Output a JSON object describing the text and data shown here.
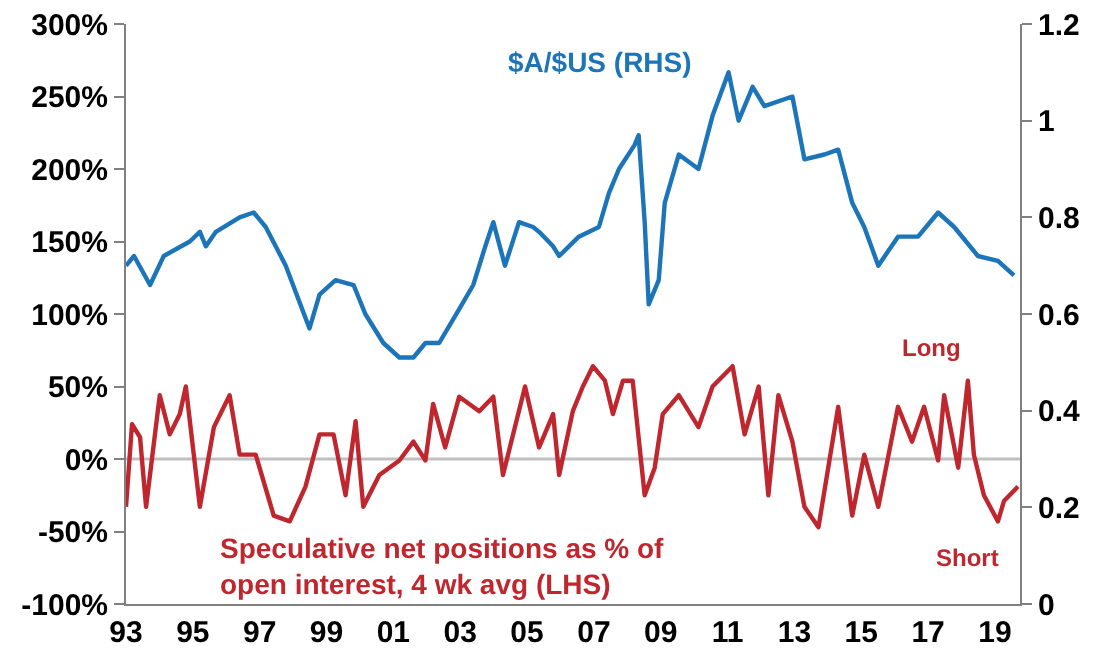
{
  "chart_data": {
    "type": "line",
    "xlim": [
      1993,
      2019.75
    ],
    "xticks": [
      {
        "value": 1993,
        "label": "93"
      },
      {
        "value": 1995,
        "label": "95"
      },
      {
        "value": 1997,
        "label": "97"
      },
      {
        "value": 1999,
        "label": "99"
      },
      {
        "value": 2001,
        "label": "01"
      },
      {
        "value": 2003,
        "label": "03"
      },
      {
        "value": 2005,
        "label": "05"
      },
      {
        "value": 2007,
        "label": "07"
      },
      {
        "value": 2009,
        "label": "09"
      },
      {
        "value": 2011,
        "label": "11"
      },
      {
        "value": 2013,
        "label": "13"
      },
      {
        "value": 2015,
        "label": "15"
      },
      {
        "value": 2017,
        "label": "17"
      },
      {
        "value": 2019,
        "label": "19"
      }
    ],
    "ylim": [
      -100,
      300
    ],
    "yticks": [
      {
        "value": -100,
        "label": "-100%"
      },
      {
        "value": -50,
        "label": "-50%"
      },
      {
        "value": 0,
        "label": "0%"
      },
      {
        "value": 50,
        "label": "50%"
      },
      {
        "value": 100,
        "label": "100%"
      },
      {
        "value": 150,
        "label": "150%"
      },
      {
        "value": 200,
        "label": "200%"
      },
      {
        "value": 250,
        "label": "250%"
      },
      {
        "value": 300,
        "label": "300%"
      }
    ],
    "y2lim": [
      0,
      1.2
    ],
    "y2ticks": [
      0,
      0.2,
      0.4,
      0.6,
      0.8,
      1,
      1.2
    ],
    "grid": false,
    "legend": false,
    "line_style": "solid",
    "marker": "none",
    "ref_lines": [
      {
        "axis": "y",
        "value": 0,
        "color": "#c0c0c0"
      }
    ],
    "annotations": [
      "Long",
      "Short"
    ],
    "series": [
      {
        "name": "$A/$US (RHS)",
        "color": "#1c75b9",
        "axis": "y2",
        "x": [
          1993.0,
          1993.24,
          1993.72,
          1994.13,
          1994.91,
          1995.21,
          1995.39,
          1995.69,
          1996.4,
          1996.82,
          1997.18,
          1997.78,
          1998.49,
          1998.79,
          1999.27,
          1999.81,
          2000.16,
          2000.7,
          2001.18,
          2001.6,
          2001.96,
          2002.37,
          2002.97,
          2003.39,
          2003.75,
          2003.99,
          2004.34,
          2004.76,
          2005.18,
          2005.36,
          2005.78,
          2005.96,
          2006.55,
          2007.15,
          2007.45,
          2007.75,
          2008.22,
          2008.34,
          2008.52,
          2008.64,
          2008.94,
          2009.12,
          2009.54,
          2010.13,
          2010.55,
          2011.03,
          2011.33,
          2011.75,
          2012.1,
          2012.94,
          2013.3,
          2013.9,
          2014.31,
          2014.73,
          2015.09,
          2015.51,
          2016.1,
          2016.7,
          2017.3,
          2017.78,
          2018.49,
          2019.09,
          2019.57
        ],
        "values": [
          0.7,
          0.72,
          0.66,
          0.72,
          0.75,
          0.77,
          0.74,
          0.77,
          0.8,
          0.81,
          0.78,
          0.7,
          0.57,
          0.64,
          0.67,
          0.66,
          0.6,
          0.54,
          0.51,
          0.51,
          0.54,
          0.54,
          0.61,
          0.66,
          0.74,
          0.79,
          0.7,
          0.79,
          0.78,
          0.77,
          0.74,
          0.72,
          0.76,
          0.78,
          0.85,
          0.9,
          0.95,
          0.97,
          0.79,
          0.62,
          0.67,
          0.83,
          0.93,
          0.9,
          1.01,
          1.1,
          1.0,
          1.07,
          1.03,
          1.05,
          0.92,
          0.93,
          0.94,
          0.83,
          0.78,
          0.7,
          0.76,
          0.76,
          0.81,
          0.78,
          0.72,
          0.71,
          0.68
        ]
      },
      {
        "name": "Speculative net positions as % of\nopen interest, 4 wk avg (LHS)",
        "color": "#c0262d",
        "x": [
          1993.0,
          1993.18,
          1993.42,
          1993.6,
          1994.01,
          1994.31,
          1994.61,
          1994.79,
          1995.21,
          1995.63,
          1996.1,
          1996.4,
          1996.88,
          1997.42,
          1997.9,
          1998.37,
          1998.79,
          1999.21,
          1999.57,
          1999.87,
          2000.1,
          2000.58,
          2001.18,
          2001.6,
          2001.96,
          2002.19,
          2002.55,
          2002.97,
          2003.57,
          2003.99,
          2004.28,
          2004.94,
          2005.36,
          2005.78,
          2005.96,
          2006.37,
          2006.67,
          2006.97,
          2007.33,
          2007.57,
          2007.87,
          2008.16,
          2008.52,
          2008.82,
          2009.06,
          2009.54,
          2010.13,
          2010.55,
          2011.15,
          2011.51,
          2011.93,
          2012.22,
          2012.52,
          2012.94,
          2013.3,
          2013.72,
          2014.31,
          2014.73,
          2015.09,
          2015.51,
          2016.1,
          2016.52,
          2016.88,
          2017.3,
          2017.48,
          2017.9,
          2018.19,
          2018.37,
          2018.67,
          2019.09,
          2019.27,
          2019.69
        ],
        "values": [
          -33,
          24,
          15,
          -33,
          44,
          17,
          31,
          50,
          -33,
          22,
          44,
          3,
          3,
          -39,
          -43,
          -19,
          17,
          17,
          -25,
          26,
          -33,
          -11,
          -1,
          12,
          -1,
          38,
          8,
          43,
          33,
          43,
          -11,
          50,
          8,
          31,
          -11,
          33,
          50,
          64,
          54,
          31,
          54,
          54,
          -25,
          -6,
          31,
          44,
          22,
          50,
          64,
          17,
          50,
          -25,
          44,
          12,
          -33,
          -47,
          36,
          -39,
          3,
          -33,
          36,
          12,
          36,
          -1,
          44,
          -6,
          54,
          3,
          -25,
          -43,
          -29,
          -19
        ]
      }
    ]
  }
}
